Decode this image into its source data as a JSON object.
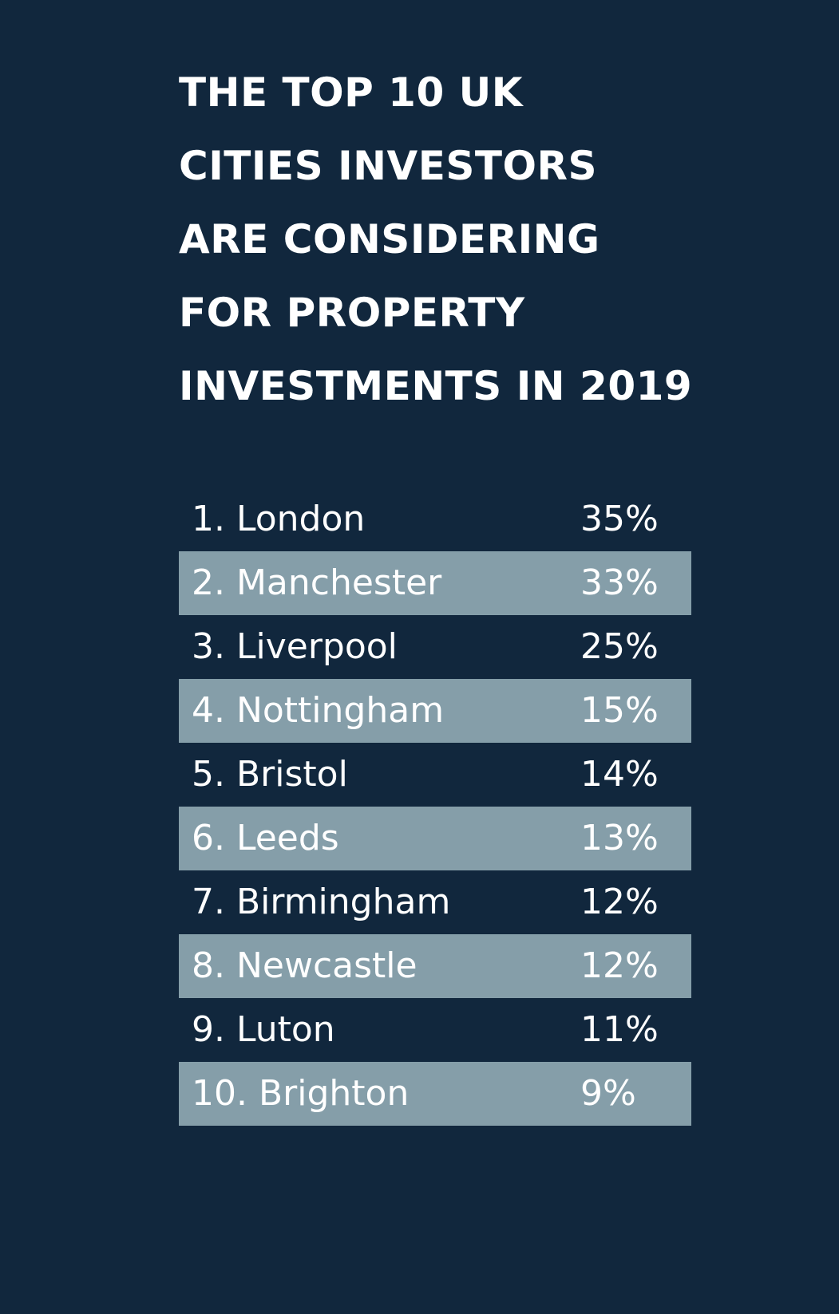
{
  "title": {
    "lines": [
      "THE TOP 10 UK",
      "CITIES INVESTORS",
      "ARE CONSIDERING",
      "FOR PROPERTY",
      "INVESTMENTS IN 2019"
    ]
  },
  "colors": {
    "background": "#11273d",
    "row_shade": "#859ea9",
    "text": "#ffffff"
  },
  "rankings": [
    {
      "label": "1. London",
      "value": "35%"
    },
    {
      "label": "2. Manchester",
      "value": "33%"
    },
    {
      "label": "3. Liverpool",
      "value": "25%"
    },
    {
      "label": "4. Nottingham",
      "value": "15%"
    },
    {
      "label": "5. Bristol",
      "value": "14%"
    },
    {
      "label": "6. Leeds",
      "value": "13%"
    },
    {
      "label": "7. Birmingham",
      "value": "12%"
    },
    {
      "label": "8. Newcastle",
      "value": "12%"
    },
    {
      "label": "9. Luton",
      "value": "11%"
    },
    {
      "label": "10. Brighton",
      "value": "9%"
    }
  ]
}
